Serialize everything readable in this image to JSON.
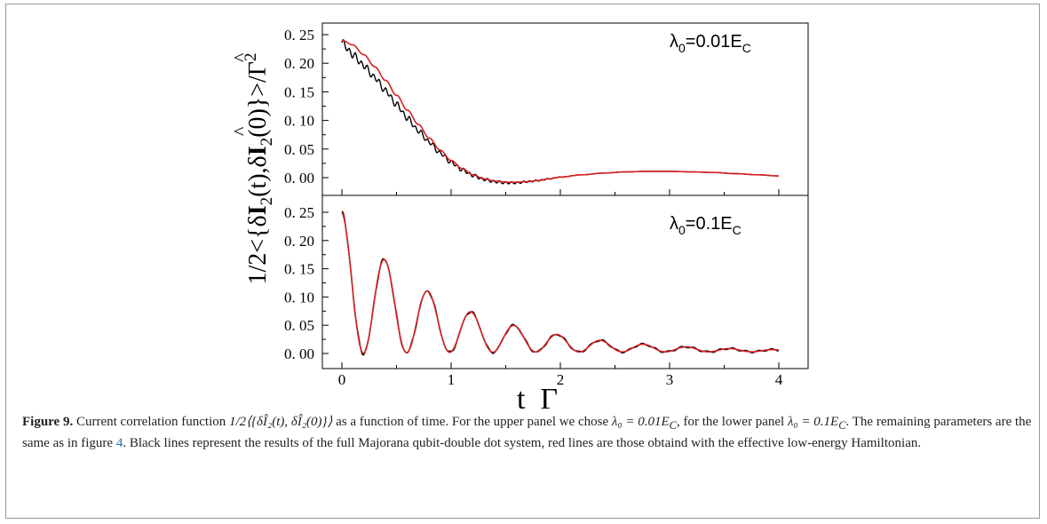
{
  "figure": {
    "y_label_parts": [
      "1/2<{δ",
      "I",
      "2",
      "(t),δ",
      "I",
      "2",
      "(0)}>/Γ",
      "2"
    ],
    "x_label": "t  Γ",
    "caption": {
      "label": "Figure 9.",
      "text_1": " Current correlation function ",
      "math_corr": "1/2⟨{δÎ₂(t), δÎ₂(0)}⟩",
      "text_2": " as a function of time. For the upper panel we chose ",
      "math_upper": "λ₀ = 0.01E",
      "sub_c1": "C",
      "text_3": ", for the lower panel ",
      "math_lower": "λ₀ = 0.1E",
      "sub_c2": "C",
      "text_4": ". The remaining parameters are the same as in figure ",
      "ref": "4",
      "text_5": ". Black lines represent the results of the full Majorana qubit-double dot system, red lines are those obtaind with the effective low-energy Hamiltonian."
    }
  },
  "chart_data": [
    {
      "type": "line",
      "panel": "upper",
      "annotation": {
        "main": "λ",
        "sub0": "0",
        "eq": "=0.01E",
        "subC": "C"
      },
      "xlim": [
        0,
        4
      ],
      "ylim": [
        0,
        0.25
      ],
      "yticks": [
        "0. 00",
        "0. 05",
        "0. 10",
        "0. 15",
        "0. 20",
        "0. 25"
      ],
      "grid": false,
      "series": [
        {
          "color": "#000000",
          "x": [
            0,
            0.1,
            0.2,
            0.3,
            0.4,
            0.5,
            0.6,
            0.7,
            0.8,
            0.9,
            1.0,
            1.1,
            1.2,
            1.3,
            1.4,
            1.5,
            1.6,
            1.7,
            1.8,
            1.9,
            2.0,
            2.2,
            2.4,
            2.6,
            2.8,
            3.0,
            3.2,
            3.4,
            3.6,
            3.8,
            4.0
          ],
          "y": [
            0.236,
            0.215,
            0.196,
            0.175,
            0.152,
            0.128,
            0.104,
            0.082,
            0.062,
            0.043,
            0.027,
            0.014,
            0.004,
            -0.003,
            -0.007,
            -0.009,
            -0.009,
            -0.007,
            -0.005,
            -0.002,
            0.001,
            0.005,
            0.008,
            0.01,
            0.011,
            0.011,
            0.01,
            0.009,
            0.007,
            0.005,
            0.003
          ],
          "wiggle_amplitude": 0.006
        },
        {
          "color": "#d62020",
          "x": [
            0,
            0.1,
            0.2,
            0.3,
            0.4,
            0.5,
            0.6,
            0.7,
            0.8,
            0.9,
            1.0,
            1.1,
            1.2,
            1.3,
            1.4,
            1.5,
            1.6,
            1.7,
            1.8,
            1.9,
            2.0,
            2.2,
            2.4,
            2.6,
            2.8,
            3.0,
            3.2,
            3.4,
            3.6,
            3.8,
            4.0
          ],
          "y": [
            0.24,
            0.232,
            0.215,
            0.194,
            0.17,
            0.144,
            0.118,
            0.093,
            0.069,
            0.048,
            0.03,
            0.016,
            0.005,
            -0.002,
            -0.006,
            -0.008,
            -0.008,
            -0.007,
            -0.005,
            -0.002,
            0.001,
            0.005,
            0.008,
            0.01,
            0.011,
            0.011,
            0.01,
            0.009,
            0.007,
            0.005,
            0.003
          ]
        }
      ]
    },
    {
      "type": "line",
      "panel": "lower",
      "annotation": {
        "main": "λ",
        "sub0": "0",
        "eq": "=0.1E",
        "subC": "C"
      },
      "xlim": [
        0,
        4
      ],
      "ylim": [
        0,
        0.25
      ],
      "xticks": [
        "0",
        "1",
        "2",
        "3",
        "4"
      ],
      "yticks": [
        "0. 00",
        "0. 05",
        "0. 10",
        "0. 15",
        "0. 20",
        "0. 25"
      ],
      "grid": false,
      "oscillation": {
        "period": 0.395,
        "decay": 0.52,
        "amplitude": 0.125
      },
      "series": [
        {
          "color": "#000000",
          "noise_amplitude": 0.004
        },
        {
          "color": "#d62020"
        }
      ]
    }
  ]
}
